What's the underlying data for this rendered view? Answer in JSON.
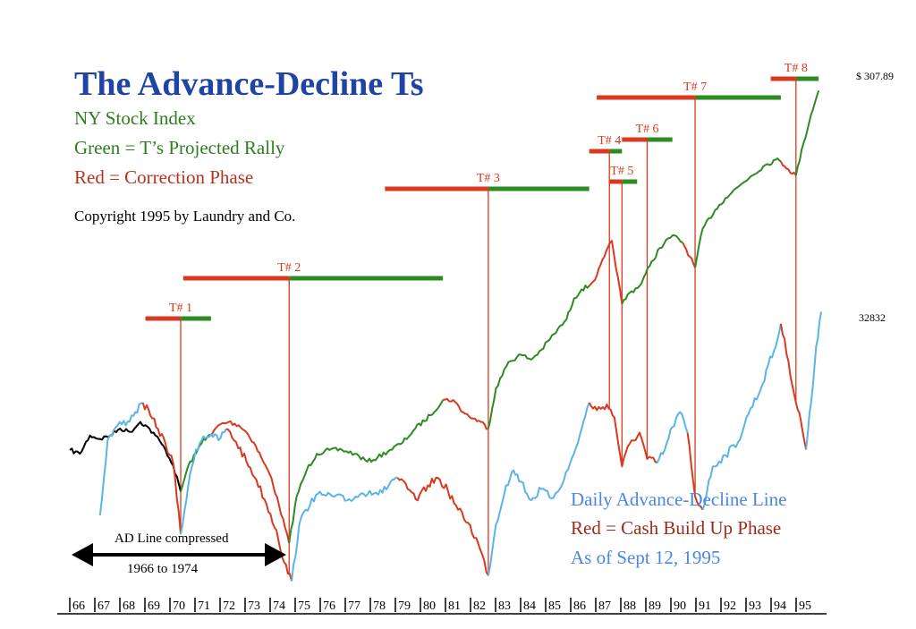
{
  "title": "The Advance-Decline Ts",
  "subtitle_lines": [
    "NY Stock Index",
    "Green = T’s Projected Rally",
    "Red = Correction Phase"
  ],
  "copyright": "Copyright 1995 by Laundry and Co.",
  "legend_lines": [
    "Daily Advance-Decline Line",
    "Red = Cash Build Up Phase",
    "As of Sept 12, 1995"
  ],
  "value_labels": {
    "price": "$ 307.89",
    "ad_line": "32832"
  },
  "compressed_note": {
    "line1": "AD Line compressed",
    "line2": "1966 to 1974"
  },
  "colors": {
    "title": "#1f44a6",
    "rally": "#2e8b22",
    "correction": "#d9391f",
    "ad_line": "#5ab4e6",
    "early_index": "#000000"
  },
  "chart_data": {
    "type": "line",
    "x_axis_ticks": [
      "66",
      "67",
      "68",
      "69",
      "70",
      "71",
      "72",
      "73",
      "74",
      "75",
      "76",
      "77",
      "78",
      "79",
      "80",
      "81",
      "82",
      "83",
      "84",
      "85",
      "86",
      "87",
      "88",
      "89",
      "90",
      "91",
      "92",
      "93",
      "94",
      "95"
    ],
    "x_range": [
      1966,
      1995.8
    ],
    "series": [
      {
        "name": "NY Stock Index",
        "segments": [
          {
            "phase": "early",
            "points": [
              [
                1966.0,
                56
              ],
              [
                1966.4,
                55
              ],
              [
                1966.8,
                60
              ],
              [
                1967.2,
                59
              ],
              [
                1967.6,
                60
              ],
              [
                1968.0,
                62
              ],
              [
                1968.4,
                61
              ],
              [
                1968.8,
                64
              ],
              [
                1969.0,
                63
              ],
              [
                1969.4,
                60
              ],
              [
                1969.8,
                56
              ],
              [
                1970.1,
                52
              ],
              [
                1970.4,
                46
              ]
            ]
          },
          {
            "phase": "rally",
            "points": [
              [
                1970.4,
                46
              ],
              [
                1970.7,
                52
              ],
              [
                1971.0,
                55
              ],
              [
                1971.3,
                59
              ],
              [
                1971.6,
                60
              ]
            ]
          },
          {
            "phase": "correction",
            "points": [
              [
                1971.6,
                60
              ],
              [
                1971.9,
                63
              ],
              [
                1972.3,
                64
              ],
              [
                1972.7,
                63
              ],
              [
                1973.0,
                61
              ],
              [
                1973.3,
                58
              ],
              [
                1973.6,
                54
              ],
              [
                1974.0,
                49
              ],
              [
                1974.3,
                43
              ],
              [
                1974.7,
                36
              ]
            ]
          },
          {
            "phase": "rally",
            "points": [
              [
                1974.7,
                36
              ],
              [
                1975.0,
                45
              ],
              [
                1975.4,
                51
              ],
              [
                1975.8,
                55
              ],
              [
                1976.3,
                56
              ],
              [
                1976.8,
                56
              ],
              [
                1977.3,
                55
              ],
              [
                1977.8,
                53
              ],
              [
                1978.2,
                54
              ],
              [
                1978.7,
                56
              ],
              [
                1979.2,
                58
              ],
              [
                1979.7,
                62
              ],
              [
                1980.3,
                66
              ],
              [
                1980.8,
                71
              ]
            ]
          },
          {
            "phase": "correction",
            "points": [
              [
                1980.8,
                71
              ],
              [
                1981.2,
                71
              ],
              [
                1981.6,
                67
              ],
              [
                1982.0,
                65
              ],
              [
                1982.3,
                64
              ],
              [
                1982.6,
                62
              ]
            ]
          },
          {
            "phase": "rally",
            "points": [
              [
                1982.6,
                62
              ],
              [
                1982.9,
                75
              ],
              [
                1983.4,
                85
              ],
              [
                1983.9,
                88
              ],
              [
                1984.3,
                86
              ],
              [
                1984.7,
                90
              ],
              [
                1985.2,
                97
              ],
              [
                1985.7,
                104
              ],
              [
                1986.0,
                115
              ],
              [
                1986.3,
                120
              ],
              [
                1986.6,
                122
              ]
            ]
          },
          {
            "phase": "correction",
            "points": [
              [
                1986.6,
                122
              ],
              [
                1986.9,
                128
              ],
              [
                1987.2,
                140
              ],
              [
                1987.5,
                151
              ],
              [
                1987.9,
                112
              ]
            ]
          },
          {
            "phase": "rally",
            "points": [
              [
                1987.9,
                112
              ],
              [
                1988.2,
                118
              ],
              [
                1988.6,
                122
              ],
              [
                1989.0,
                134
              ],
              [
                1989.4,
                146
              ],
              [
                1989.9,
                155
              ],
              [
                1990.3,
                150
              ]
            ]
          },
          {
            "phase": "correction",
            "points": [
              [
                1990.3,
                150
              ],
              [
                1990.6,
                140
              ],
              [
                1990.8,
                133
              ]
            ]
          },
          {
            "phase": "rally",
            "points": [
              [
                1990.8,
                133
              ],
              [
                1991.1,
                160
              ],
              [
                1991.6,
                175
              ],
              [
                1992.0,
                185
              ],
              [
                1992.5,
                195
              ],
              [
                1993.0,
                205
              ],
              [
                1993.5,
                215
              ],
              [
                1994.0,
                222
              ],
              [
                1994.2,
                220
              ]
            ]
          },
          {
            "phase": "correction",
            "points": [
              [
                1994.2,
                220
              ],
              [
                1994.5,
                212
              ],
              [
                1994.8,
                206
              ]
            ]
          },
          {
            "phase": "rally",
            "points": [
              [
                1994.8,
                206
              ],
              [
                1995.1,
                240
              ],
              [
                1995.4,
                275
              ],
              [
                1995.7,
                307.89
              ]
            ]
          }
        ]
      },
      {
        "name": "Daily Advance-Decline Line",
        "segments": [
          {
            "phase": "normal",
            "points": [
              [
                1967.2,
                22000
              ],
              [
                1967.5,
                26000
              ],
              [
                1967.9,
                26800
              ],
              [
                1968.3,
                27000
              ],
              [
                1968.6,
                27500
              ],
              [
                1968.9,
                28000
              ]
            ]
          },
          {
            "phase": "cash",
            "points": [
              [
                1968.9,
                28000
              ],
              [
                1969.2,
                27300
              ],
              [
                1969.5,
                26600
              ],
              [
                1969.8,
                25800
              ],
              [
                1970.1,
                24800
              ],
              [
                1970.4,
                21000
              ]
            ]
          },
          {
            "phase": "normal",
            "points": [
              [
                1970.4,
                21000
              ],
              [
                1970.7,
                23600
              ],
              [
                1971.0,
                25500
              ],
              [
                1971.3,
                26200
              ],
              [
                1971.6,
                26300
              ],
              [
                1971.9,
                26000
              ],
              [
                1972.2,
                26600
              ]
            ]
          },
          {
            "phase": "cash",
            "points": [
              [
                1972.2,
                26600
              ],
              [
                1972.6,
                25900
              ],
              [
                1973.0,
                24900
              ],
              [
                1973.4,
                23900
              ],
              [
                1973.8,
                22600
              ],
              [
                1974.2,
                21200
              ],
              [
                1974.5,
                19500
              ],
              [
                1974.8,
                18500
              ]
            ]
          },
          {
            "phase": "normal",
            "points": [
              [
                1974.8,
                18500
              ],
              [
                1975.1,
                21500
              ],
              [
                1975.6,
                22900
              ],
              [
                1976.0,
                23100
              ],
              [
                1976.5,
                23000
              ],
              [
                1977.0,
                22800
              ],
              [
                1977.5,
                23100
              ],
              [
                1977.9,
                23300
              ],
              [
                1978.4,
                23200
              ],
              [
                1978.8,
                23900
              ],
              [
                1979.0,
                24000
              ]
            ]
          },
          {
            "phase": "cash",
            "points": [
              [
                1979.0,
                24000
              ],
              [
                1979.4,
                23400
              ],
              [
                1979.8,
                22800
              ],
              [
                1980.2,
                23600
              ],
              [
                1980.6,
                24000
              ],
              [
                1981.0,
                23300
              ],
              [
                1981.4,
                22300
              ],
              [
                1981.8,
                21600
              ],
              [
                1982.2,
                20500
              ],
              [
                1982.6,
                18800
              ]
            ]
          },
          {
            "phase": "normal",
            "points": [
              [
                1982.6,
                18800
              ],
              [
                1982.9,
                21500
              ],
              [
                1983.3,
                23600
              ],
              [
                1983.6,
                24400
              ],
              [
                1983.9,
                23800
              ],
              [
                1984.3,
                22800
              ],
              [
                1984.7,
                23400
              ],
              [
                1985.1,
                22900
              ],
              [
                1985.6,
                23900
              ],
              [
                1986.0,
                25300
              ],
              [
                1986.3,
                26600
              ],
              [
                1986.6,
                28000
              ]
            ]
          },
          {
            "phase": "cash",
            "points": [
              [
                1986.6,
                28000
              ],
              [
                1986.9,
                27600
              ],
              [
                1987.3,
                27900
              ],
              [
                1987.6,
                27200
              ],
              [
                1987.9,
                24600
              ],
              [
                1988.2,
                25800
              ],
              [
                1988.6,
                26400
              ],
              [
                1988.9,
                25000
              ],
              [
                1989.3,
                24800
              ]
            ]
          },
          {
            "phase": "normal",
            "points": [
              [
                1989.3,
                24800
              ],
              [
                1989.6,
                25500
              ],
              [
                1989.9,
                26700
              ],
              [
                1990.2,
                27500
              ],
              [
                1990.5,
                26400
              ]
            ]
          },
          {
            "phase": "cash",
            "points": [
              [
                1990.5,
                26400
              ],
              [
                1990.8,
                23000
              ],
              [
                1991.1,
                22300
              ]
            ]
          },
          {
            "phase": "normal",
            "points": [
              [
                1991.1,
                22300
              ],
              [
                1991.5,
                24600
              ],
              [
                1992.0,
                25200
              ],
              [
                1992.5,
                25900
              ],
              [
                1993.0,
                27700
              ],
              [
                1993.4,
                28700
              ],
              [
                1993.7,
                30000
              ],
              [
                1994.0,
                31000
              ],
              [
                1994.2,
                32200
              ]
            ]
          },
          {
            "phase": "cash",
            "points": [
              [
                1994.2,
                32200
              ],
              [
                1994.5,
                30200
              ],
              [
                1994.8,
                28000
              ],
              [
                1995.0,
                27000
              ],
              [
                1995.2,
                25500
              ]
            ]
          },
          {
            "phase": "normal",
            "points": [
              [
                1995.2,
                25500
              ],
              [
                1995.4,
                28000
              ],
              [
                1995.6,
                31000
              ],
              [
                1995.8,
                32832
              ]
            ]
          }
        ]
      }
    ],
    "t_labels": [
      {
        "label": "T# 1",
        "start": 1969.0,
        "trough": 1970.4,
        "end": 1971.6
      },
      {
        "label": "T# 2",
        "start": 1970.5,
        "trough": 1974.7,
        "end": 1980.8
      },
      {
        "label": "T# 3",
        "start": 1978.5,
        "trough": 1982.6,
        "end": 1986.6
      },
      {
        "label": "T# 4",
        "start": 1986.6,
        "trough": 1987.4,
        "end": 1987.9
      },
      {
        "label": "T# 5",
        "start": 1987.4,
        "trough": 1987.9,
        "end": 1988.5
      },
      {
        "label": "T# 6",
        "start": 1987.9,
        "trough": 1988.9,
        "end": 1989.9
      },
      {
        "label": "T# 7",
        "start": 1986.9,
        "trough": 1990.8,
        "end": 1994.2
      },
      {
        "label": "T# 8",
        "start": 1993.8,
        "trough": 1994.8,
        "end": 1995.7
      }
    ]
  }
}
